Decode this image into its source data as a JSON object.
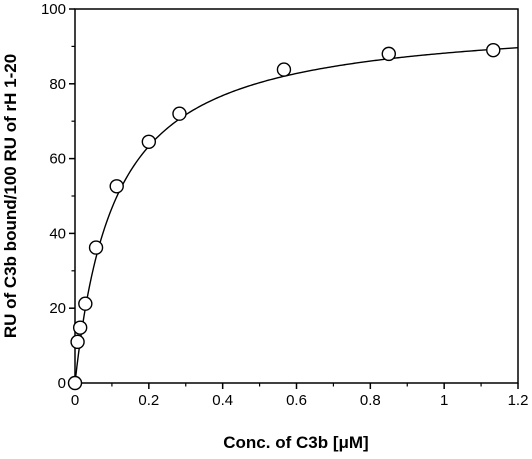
{
  "chart_data": {
    "type": "scatter",
    "title": "",
    "xlabel": "Conc. of C3b [μM]",
    "ylabel": "RU of C3b bound/100 RU of rH 1-20",
    "xlim": [
      0,
      1.2
    ],
    "ylim": [
      0,
      100
    ],
    "x_ticks": [
      "0",
      "0.2",
      "0.4",
      "0.6",
      "0.8",
      "1",
      "1.2"
    ],
    "y_ticks": [
      "0",
      "20",
      "40",
      "60",
      "80",
      "100"
    ],
    "grid": false,
    "legend": "none",
    "series": [
      {
        "x": [
          0.0,
          0.007,
          0.014,
          0.028,
          0.057,
          0.113,
          0.2,
          0.283,
          0.566,
          0.85,
          1.133
        ],
        "y": [
          0.0,
          11.0,
          14.8,
          21.2,
          36.2,
          52.6,
          64.5,
          72.0,
          83.8,
          88.0,
          89.0
        ],
        "marker": "open-circle"
      }
    ],
    "fit_curve": {
      "model": "Bmax*x/(Kd+x)",
      "Bmax": 97.8,
      "Kd": 0.109,
      "x_range": [
        0,
        1.2
      ],
      "style": "solid-line"
    },
    "colors": {
      "line": "#000000",
      "marker_fill": "#ffffff",
      "marker_stroke": "#000000"
    }
  }
}
